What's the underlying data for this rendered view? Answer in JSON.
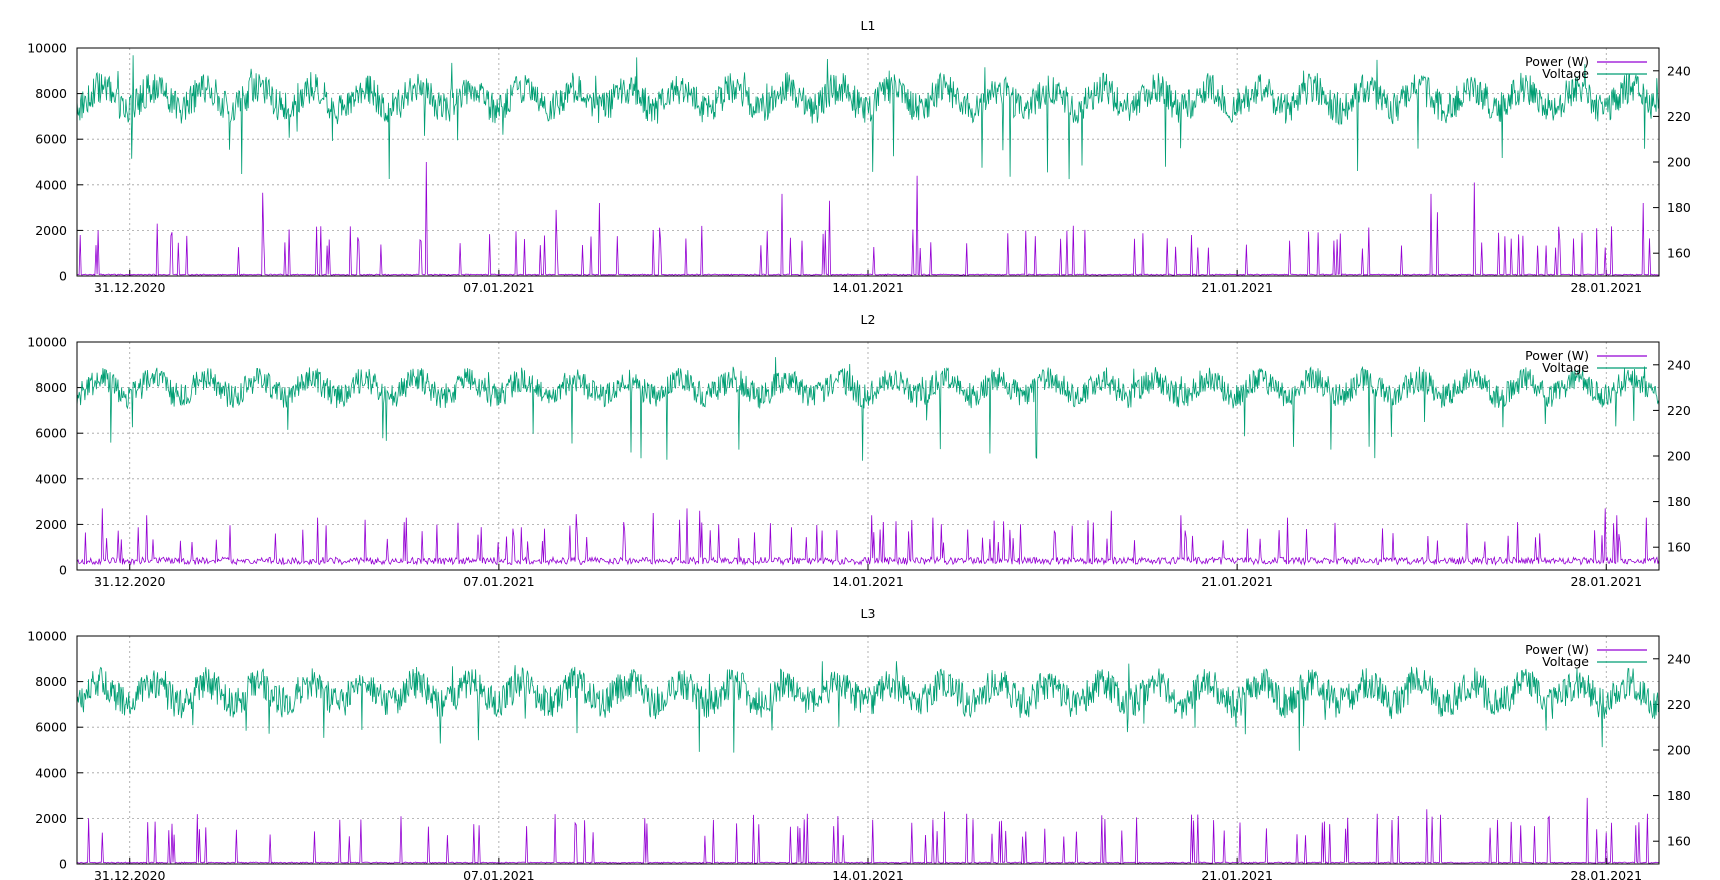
{
  "colors": {
    "power": "#9400d3",
    "voltage": "#009e73",
    "grid": "#a0a0a0",
    "frame": "#000000"
  },
  "legend": {
    "power": "Power (W)",
    "voltage": "Voltage"
  },
  "chart_data": [
    {
      "type": "line",
      "title": "L1",
      "x_tick_labels": [
        "31.12.2020",
        "07.01.2021",
        "14.01.2021",
        "21.01.2021",
        "28.01.2021"
      ],
      "x_range": [
        "2020-12-30",
        "2021-01-29"
      ],
      "y_left": {
        "ylim": [
          0,
          10000
        ],
        "ticks": [
          0,
          2000,
          4000,
          6000,
          8000,
          10000
        ]
      },
      "y_right": {
        "ylim": [
          150,
          250
        ],
        "ticks": [
          160,
          180,
          200,
          220,
          240
        ]
      },
      "grid": true,
      "legend_position": "top-right",
      "series": [
        {
          "name": "Power (W)",
          "axis": "left",
          "base": 60,
          "spike_values": [
            1800,
            2000,
            2300,
            3650,
            5000,
            2900,
            3200,
            3600,
            3300,
            4400,
            2200,
            1800,
            3600,
            2800,
            4100,
            3200,
            4100,
            3500,
            3300,
            2100
          ],
          "approx_range": [
            0,
            5000
          ]
        },
        {
          "name": "Voltage",
          "axis": "right",
          "typical_range": [
            218,
            238
          ],
          "min": 192,
          "max": 248
        }
      ]
    },
    {
      "type": "line",
      "title": "L2",
      "x_tick_labels": [
        "31.12.2020",
        "07.01.2021",
        "14.01.2021",
        "21.01.2021",
        "28.01.2021"
      ],
      "x_range": [
        "2020-12-30",
        "2021-01-29"
      ],
      "y_left": {
        "ylim": [
          0,
          10000
        ],
        "ticks": [
          0,
          2000,
          4000,
          6000,
          8000,
          10000
        ]
      },
      "y_right": {
        "ylim": [
          150,
          250
        ],
        "ticks": [
          160,
          180,
          200,
          220,
          240
        ]
      },
      "grid": true,
      "legend_position": "top-right",
      "series": [
        {
          "name": "Power (W)",
          "axis": "left",
          "base": 400,
          "spike_values": [
            2700,
            2400,
            2300,
            2200,
            2100,
            2300,
            2450,
            2100,
            2500,
            2200,
            2700,
            2600,
            2400,
            2300,
            2600,
            2400,
            2300
          ],
          "approx_range": [
            250,
            2700
          ]
        },
        {
          "name": "Voltage",
          "axis": "right",
          "typical_range": [
            222,
            238
          ],
          "min": 196,
          "max": 244
        }
      ]
    },
    {
      "type": "line",
      "title": "L3",
      "x_tick_labels": [
        "31.12.2020",
        "07.01.2021",
        "14.01.2021",
        "21.01.2021",
        "28.01.2021"
      ],
      "x_range": [
        "2020-12-30",
        "2021-01-29"
      ],
      "y_left": {
        "ylim": [
          0,
          10000
        ],
        "ticks": [
          0,
          2000,
          4000,
          6000,
          8000,
          10000
        ]
      },
      "y_right": {
        "ylim": [
          150,
          250
        ],
        "ticks": [
          160,
          180,
          200,
          220,
          240
        ]
      },
      "grid": true,
      "legend_position": "top-right",
      "series": [
        {
          "name": "Power (W)",
          "axis": "left",
          "base": 60,
          "spike_values": [
            1500,
            1700,
            1800,
            2200,
            2100,
            2300,
            2200,
            1900,
            2200,
            2400,
            2900,
            2200,
            1900,
            2100
          ],
          "approx_range": [
            0,
            2900
          ]
        },
        {
          "name": "Voltage",
          "axis": "right",
          "typical_range": [
            215,
            235
          ],
          "min": 197,
          "max": 242
        }
      ]
    }
  ]
}
